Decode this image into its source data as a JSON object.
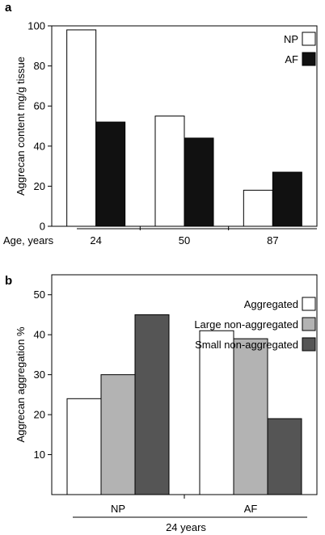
{
  "chart_data": [
    {
      "panel": "a",
      "type": "bar",
      "categories": [
        "24",
        "50",
        "87"
      ],
      "xlabel": "Age, years",
      "ylabel": "Aggrecan content mg/g tissue",
      "ylim": [
        0,
        100
      ],
      "yticks": [
        0,
        20,
        40,
        60,
        80,
        100
      ],
      "series": [
        {
          "name": "NP",
          "color": "#ffffff",
          "values": [
            98,
            55,
            18
          ]
        },
        {
          "name": "AF",
          "color": "#111111",
          "values": [
            52,
            44,
            27
          ]
        }
      ],
      "legend_position": "top-right",
      "grid": false
    },
    {
      "panel": "b",
      "type": "bar",
      "categories": [
        "NP",
        "AF"
      ],
      "xlabel": "24 years",
      "ylabel": "Aggrecan aggregation %",
      "ylim": [
        0,
        55
      ],
      "yticks": [
        10,
        20,
        30,
        40,
        50
      ],
      "series": [
        {
          "name": "Aggregated",
          "color": "#ffffff",
          "values": [
            24,
            41
          ]
        },
        {
          "name": "Large non-aggregated",
          "color": "#b3b3b3",
          "values": [
            30,
            39
          ]
        },
        {
          "name": "Small non-aggregated",
          "color": "#555555",
          "values": [
            45,
            19
          ]
        }
      ],
      "legend_position": "top-right",
      "grid": false
    }
  ]
}
